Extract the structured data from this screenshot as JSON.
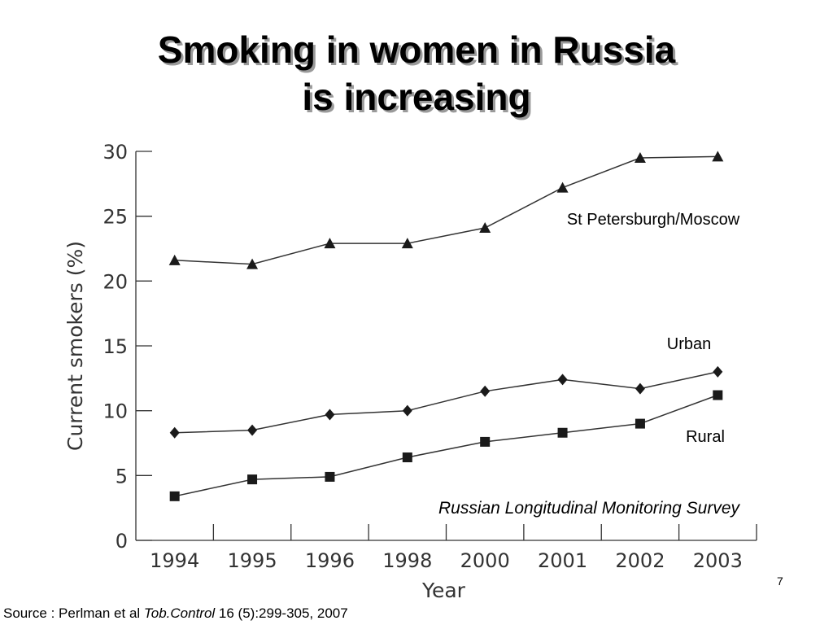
{
  "slide": {
    "title_line1": "Smoking in women in Russia",
    "title_line2": "is increasing",
    "source_prefix": "Source : Perlman et al ",
    "source_journal": "Tob.Control",
    "source_suffix": " 16 (5):299-305, 2007",
    "page_number": "7"
  },
  "chart_data": {
    "type": "line",
    "xlabel": "Year",
    "ylabel": "Current smokers (%)",
    "categories": [
      "1994",
      "1995",
      "1996",
      "1998",
      "2000",
      "2001",
      "2002",
      "2003"
    ],
    "yticks": [
      "0",
      "5",
      "10",
      "15",
      "20",
      "25",
      "30"
    ],
    "ylim": [
      0,
      30
    ],
    "grid": false,
    "annotation": "Russian Longitudinal Monitoring Survey",
    "series": [
      {
        "name": "St Petersburgh/Moscow",
        "marker": "triangle",
        "values": [
          21.6,
          21.3,
          22.9,
          22.9,
          24.1,
          27.2,
          29.5,
          29.6
        ]
      },
      {
        "name": "Urban",
        "marker": "diamond",
        "values": [
          8.3,
          8.5,
          9.7,
          10.0,
          11.5,
          12.4,
          11.7,
          13.0
        ]
      },
      {
        "name": "Rural",
        "marker": "square",
        "values": [
          3.4,
          4.7,
          4.9,
          6.4,
          7.6,
          8.3,
          9.0,
          11.2
        ]
      }
    ],
    "colors": {
      "line": "#333333",
      "marker": "#1a1a1a",
      "axis": "#333333",
      "text": "#333333"
    }
  }
}
